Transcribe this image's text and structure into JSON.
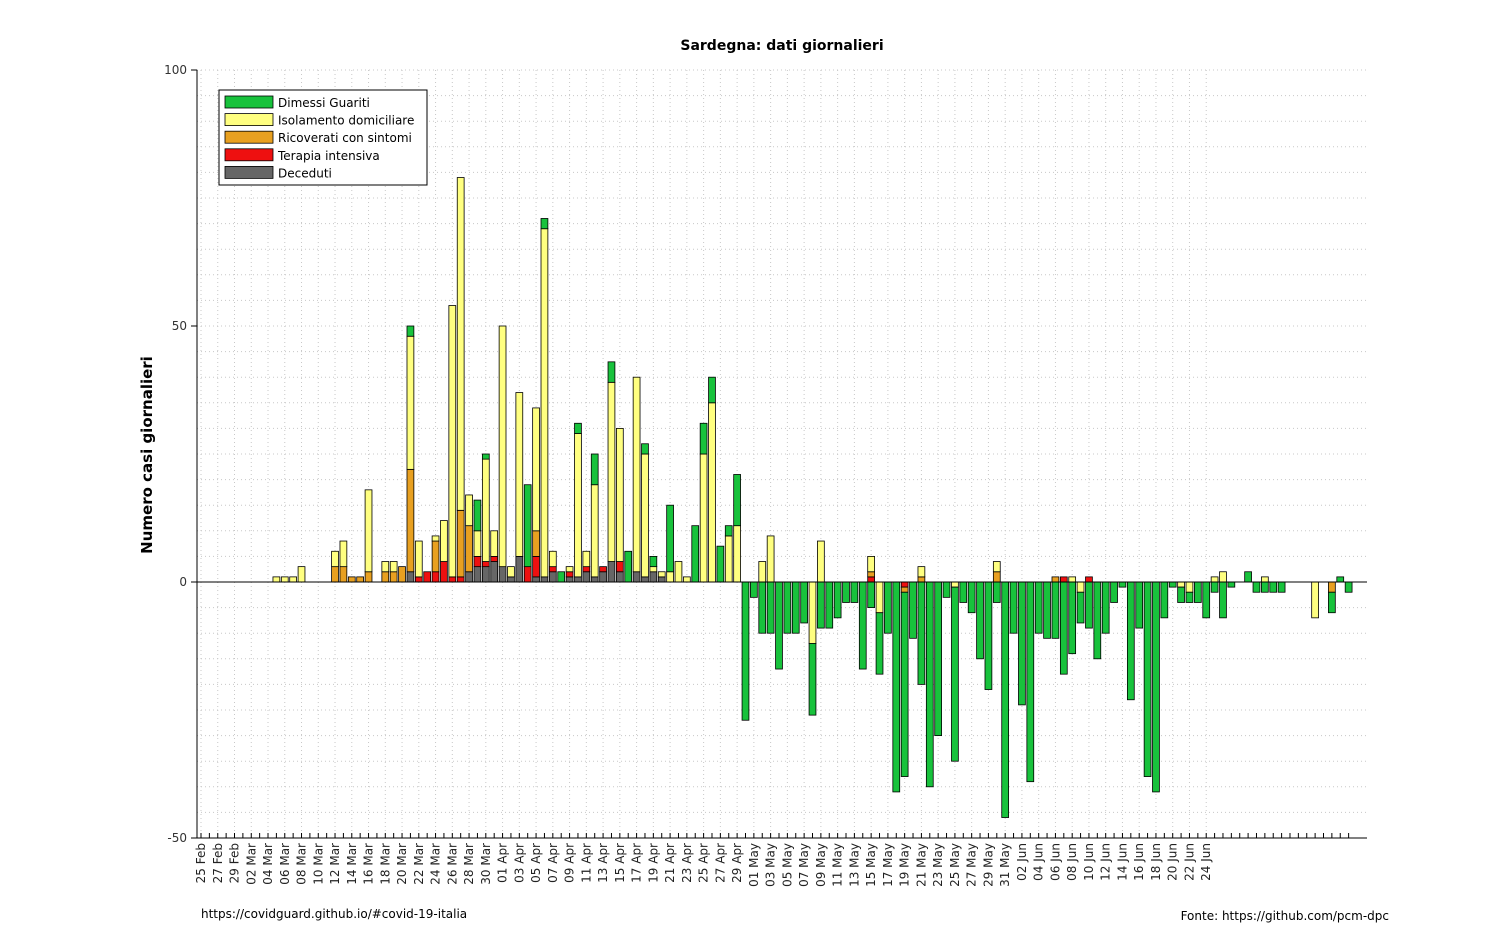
{
  "chart_data": {
    "type": "bar",
    "stacked": true,
    "title": "Sardegna: dati giornalieri",
    "ylabel": "Numero casi giornalieri",
    "xlabel": "",
    "ylim": [
      -50,
      100
    ],
    "yticks": [
      -50,
      0,
      50,
      100
    ],
    "grid": true,
    "legend_position": "top-left",
    "footer_left": "https://covidguard.github.io/#covid-19-italia",
    "footer_right": "Fonte: https://github.com/pcm-dpc",
    "start_date": "2020-02-25",
    "x_tick_labels": [
      "25 Feb",
      "27 Feb",
      "29 Feb",
      "02 Mar",
      "04 Mar",
      "06 Mar",
      "08 Mar",
      "10 Mar",
      "12 Mar",
      "14 Mar",
      "16 Mar",
      "18 Mar",
      "20 Mar",
      "22 Mar",
      "24 Mar",
      "26 Mar",
      "28 Mar",
      "30 Mar",
      "01 Apr",
      "03 Apr",
      "05 Apr",
      "07 Apr",
      "09 Apr",
      "11 Apr",
      "13 Apr",
      "15 Apr",
      "17 Apr",
      "19 Apr",
      "21 Apr",
      "23 Apr",
      "25 Apr",
      "27 Apr",
      "29 Apr",
      "01 May",
      "03 May",
      "05 May",
      "07 May",
      "09 May",
      "11 May",
      "13 May",
      "15 May",
      "17 May",
      "19 May",
      "21 May",
      "23 May",
      "25 May",
      "27 May",
      "29 May",
      "31 May",
      "02 Jun",
      "04 Jun",
      "06 Jun",
      "08 Jun",
      "10 Jun",
      "12 Jun",
      "14 Jun",
      "16 Jun",
      "18 Jun",
      "20 Jun",
      "22 Jun",
      "24 Jun"
    ],
    "series": [
      {
        "name": "Dimessi Guariti",
        "color": "#18c23c",
        "values": [
          0,
          0,
          0,
          0,
          0,
          0,
          0,
          0,
          0,
          0,
          0,
          0,
          0,
          0,
          0,
          0,
          0,
          0,
          0,
          0,
          0,
          0,
          0,
          0,
          0,
          2,
          0,
          0,
          0,
          0,
          0,
          0,
          0,
          6,
          1,
          0,
          0,
          0,
          0,
          16,
          0,
          2,
          0,
          2,
          0,
          2,
          0,
          6,
          0,
          4,
          0,
          6,
          0,
          2,
          2,
          0,
          13,
          0,
          0,
          11,
          6,
          5,
          7,
          2,
          10,
          -27,
          -3,
          -10,
          -10,
          -17,
          -10,
          -10,
          -8,
          -14,
          -9,
          -9,
          -7,
          -4,
          -4,
          -17,
          -5,
          -12,
          -10,
          -41,
          -36,
          -11,
          -20,
          -40,
          -30,
          -3,
          -34,
          -4,
          -6,
          -15,
          -21,
          -4,
          -46,
          -10,
          -24,
          -39,
          -10,
          -11,
          -11,
          -18,
          -14,
          -6,
          -9,
          -15,
          -10,
          -4,
          -1,
          -23,
          -9,
          -38,
          -41,
          -7,
          -1,
          -3,
          -2,
          -4,
          -7,
          -2,
          -7,
          -1,
          0,
          2,
          -2,
          -2,
          -2,
          -2,
          0,
          0,
          0,
          0,
          0,
          -4,
          1,
          -2
        ]
      },
      {
        "name": "Isolamento domiciliare",
        "color": "#ffff80",
        "values": [
          0,
          0,
          0,
          0,
          0,
          0,
          0,
          0,
          0,
          1,
          1,
          1,
          3,
          0,
          0,
          0,
          3,
          5,
          0,
          0,
          16,
          0,
          2,
          2,
          0,
          26,
          7,
          0,
          1,
          8,
          53,
          65,
          6,
          5,
          20,
          5,
          47,
          2,
          32,
          0,
          24,
          68,
          3,
          0,
          1,
          28,
          3,
          18,
          0,
          35,
          26,
          0,
          38,
          24,
          1,
          1,
          2,
          4,
          1,
          0,
          25,
          35,
          0,
          9,
          11,
          0,
          0,
          4,
          9,
          0,
          0,
          0,
          0,
          -12,
          8,
          0,
          0,
          0,
          0,
          0,
          3,
          -6,
          0,
          0,
          0,
          0,
          2,
          0,
          0,
          0,
          -1,
          0,
          0,
          0,
          0,
          2,
          0,
          0,
          0,
          0,
          0,
          0,
          0,
          0,
          1,
          -2,
          0,
          0,
          0,
          0,
          0,
          0,
          0,
          0,
          0,
          0,
          0,
          -1,
          -2,
          0,
          0,
          1,
          2,
          0,
          0,
          0,
          0,
          1,
          0,
          0,
          0,
          0,
          0,
          -7,
          0,
          0,
          0
        ]
      },
      {
        "name": "Ricoverati con sintomi",
        "color": "#e8a020",
        "values": [
          0,
          0,
          0,
          0,
          0,
          0,
          0,
          0,
          0,
          0,
          0,
          0,
          0,
          0,
          0,
          0,
          3,
          3,
          1,
          1,
          2,
          0,
          2,
          2,
          3,
          20,
          0,
          0,
          6,
          0,
          0,
          13,
          9,
          0,
          0,
          0,
          0,
          0,
          0,
          0,
          5,
          0,
          0,
          0,
          0,
          0,
          0,
          0,
          0,
          0,
          0,
          0,
          0,
          0,
          0,
          0,
          0,
          0,
          0,
          0,
          0,
          0,
          0,
          0,
          0,
          0,
          0,
          0,
          0,
          0,
          0,
          0,
          0,
          0,
          0,
          0,
          0,
          0,
          0,
          0,
          1,
          0,
          0,
          0,
          -1,
          0,
          1,
          0,
          0,
          0,
          0,
          0,
          0,
          0,
          0,
          2,
          0,
          0,
          0,
          0,
          0,
          0,
          1,
          0,
          0,
          0,
          0,
          0,
          0,
          0,
          0,
          0,
          0,
          0,
          0,
          0,
          0,
          0,
          0,
          0,
          0,
          0,
          0,
          0,
          0,
          0,
          0,
          0,
          0,
          0,
          0,
          0,
          0,
          0,
          0,
          -2,
          0,
          0,
          0
        ]
      },
      {
        "name": "Terapia intensiva",
        "color": "#ee1010",
        "values": [
          0,
          0,
          0,
          0,
          0,
          0,
          0,
          0,
          0,
          0,
          0,
          0,
          0,
          0,
          0,
          0,
          0,
          0,
          0,
          0,
          0,
          0,
          0,
          0,
          0,
          0,
          1,
          2,
          2,
          4,
          1,
          1,
          0,
          2,
          1,
          1,
          0,
          0,
          0,
          3,
          4,
          0,
          1,
          0,
          1,
          0,
          1,
          0,
          1,
          0,
          2,
          0,
          0,
          0,
          0,
          0,
          0,
          0,
          0,
          0,
          0,
          0,
          0,
          0,
          0,
          0,
          0,
          0,
          0,
          0,
          0,
          0,
          0,
          0,
          0,
          0,
          0,
          0,
          0,
          0,
          1,
          0,
          0,
          0,
          -1,
          0,
          0,
          0,
          0,
          0,
          0,
          0,
          0,
          0,
          0,
          0,
          0,
          0,
          0,
          0,
          0,
          0,
          0,
          1,
          0,
          0,
          1,
          0,
          0,
          0,
          0,
          0,
          0,
          0,
          0,
          0,
          0,
          0,
          0,
          0,
          0,
          0,
          0,
          0,
          0,
          0,
          0,
          0,
          0,
          0,
          0,
          0,
          0,
          0,
          0,
          0,
          0,
          0,
          0
        ]
      },
      {
        "name": "Deceduti",
        "color": "#666666",
        "values": [
          0,
          0,
          0,
          0,
          0,
          0,
          0,
          0,
          0,
          0,
          0,
          0,
          0,
          0,
          0,
          0,
          0,
          0,
          0,
          0,
          0,
          0,
          0,
          0,
          0,
          2,
          0,
          0,
          0,
          0,
          0,
          0,
          2,
          3,
          3,
          4,
          3,
          1,
          5,
          0,
          1,
          1,
          2,
          0,
          1,
          1,
          2,
          1,
          2,
          4,
          2,
          0,
          2,
          1,
          2,
          1,
          0,
          0,
          0,
          0,
          0,
          0,
          0,
          0,
          0,
          0,
          0,
          0,
          0,
          0,
          0,
          0,
          0,
          0,
          0,
          0,
          0,
          0,
          0,
          0,
          0,
          0,
          0,
          0,
          0,
          0,
          0,
          0,
          0,
          0,
          0,
          0,
          0,
          0,
          0,
          0,
          0,
          0,
          0,
          0,
          0,
          0,
          0,
          0,
          0,
          0,
          0,
          0,
          0,
          0,
          0,
          0,
          0,
          0,
          0,
          0,
          0,
          0,
          0,
          0,
          0,
          0,
          0,
          0,
          0,
          0,
          0,
          0,
          0,
          0,
          0,
          0,
          0,
          0,
          0,
          0,
          0,
          0,
          0
        ]
      }
    ]
  }
}
